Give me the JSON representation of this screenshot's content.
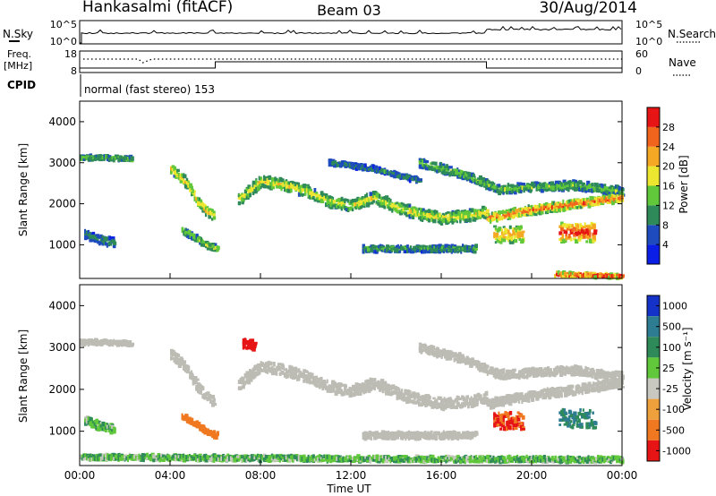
{
  "header": {
    "station": "Hankasalmi (fitACF)",
    "beam": "Beam 03",
    "date": "30/Aug/2014"
  },
  "top_panels": {
    "nsky_label": "N.Sky",
    "nsky_ticks": [
      "10^5",
      "10^0"
    ],
    "nsearch_label": "N.Search",
    "nsearch_ticks": [
      "10^5",
      "10^0"
    ],
    "freq_label_1": "Freq.",
    "freq_label_2": "[MHz]",
    "freq_ticks": [
      "18",
      "8"
    ],
    "nave_label": "Nave",
    "nave_ticks": [
      "60",
      "0"
    ],
    "cpid_label": "CPID",
    "cpid_text": "normal (fast stereo) 153"
  },
  "colors": {
    "power_scale": [
      "#0a1ee6",
      "#1e4bbe",
      "#2e8a58",
      "#60c83a",
      "#ece630",
      "#f5a823",
      "#f0641e",
      "#e61414"
    ],
    "velocity_scale": [
      "#1432c8",
      "#2e7c92",
      "#2e8a58",
      "#60c83a",
      "#c8c8c0",
      "#eea03c",
      "#f07820",
      "#e61414"
    ],
    "ground_scatter": "#bcbcb4"
  },
  "chart_data": [
    {
      "type": "heatmap",
      "name": "power",
      "ylabel": "Slant Range [km]",
      "y_ticks": [
        "1000",
        "2000",
        "3000",
        "4000"
      ],
      "ylim": [
        180,
        4500
      ],
      "xlim_hours": [
        0,
        24
      ],
      "colorbar": {
        "label": "Power [dB]",
        "ticks": [
          "4",
          "8",
          "12",
          "16",
          "20",
          "24",
          "28"
        ],
        "range": [
          0,
          30
        ]
      },
      "echo_bands": [
        {
          "range_km": [
            [
              0,
              3120
            ],
            [
              1,
              3120
            ],
            [
              2,
              3100
            ],
            [
              2.3,
              3080
            ]
          ],
          "width_km": 100,
          "peak_db": 14
        },
        {
          "range_km": [
            [
              0.2,
              1250
            ],
            [
              1,
              1100
            ],
            [
              1.5,
              1050
            ]
          ],
          "width_km": 200,
          "peak_db": 10
        },
        {
          "range_km": [
            [
              4,
              2850
            ],
            [
              4.7,
              2500
            ],
            [
              5.2,
              2050
            ],
            [
              5.6,
              1800
            ],
            [
              5.9,
              1700
            ]
          ],
          "width_km": 220,
          "peak_db": 20
        },
        {
          "range_km": [
            [
              4.5,
              1350
            ],
            [
              5,
              1200
            ],
            [
              5.7,
              950
            ],
            [
              6.1,
              900
            ]
          ],
          "width_km": 140,
          "peak_db": 16
        },
        {
          "range_km": [
            [
              7,
              2100
            ],
            [
              8,
              2550
            ],
            [
              9,
              2450
            ],
            [
              10,
              2300
            ],
            [
              11,
              2050
            ],
            [
              12,
              1950
            ],
            [
              13,
              2150
            ],
            [
              14,
              1900
            ],
            [
              15,
              1750
            ],
            [
              16,
              1650
            ],
            [
              17,
              1700
            ],
            [
              18,
              1800
            ]
          ],
          "width_km": 260,
          "peak_db": 18
        },
        {
          "range_km": [
            [
              11,
              3000
            ],
            [
              13,
              2850
            ],
            [
              14,
              2700
            ],
            [
              15,
              2550
            ]
          ],
          "width_km": 110,
          "peak_db": 10
        },
        {
          "range_km": [
            [
              15,
              3000
            ],
            [
              17,
              2700
            ],
            [
              18.5,
              2350
            ],
            [
              20,
              2400
            ],
            [
              22,
              2450
            ],
            [
              23,
              2350
            ],
            [
              24,
              2300
            ]
          ],
          "width_km": 200,
          "peak_db": 14
        },
        {
          "range_km": [
            [
              18,
              1650
            ],
            [
              20,
              1850
            ],
            [
              22,
              2000
            ],
            [
              24,
              2150
            ]
          ],
          "width_km": 200,
          "peak_db": 26
        },
        {
          "range_km": [
            [
              18.3,
              1250
            ],
            [
              19.6,
              1250
            ]
          ],
          "width_km": 400,
          "peak_db": 22
        },
        {
          "range_km": [
            [
              21.2,
              1300
            ],
            [
              22.8,
              1300
            ]
          ],
          "width_km": 450,
          "peak_db": 29
        },
        {
          "range_km": [
            [
              12.5,
              900
            ],
            [
              15,
              900
            ],
            [
              17.5,
              900
            ]
          ],
          "width_km": 150,
          "peak_db": 12
        },
        {
          "range_km": [
            [
              21,
              280
            ],
            [
              24,
              230
            ]
          ],
          "width_km": 90,
          "peak_db": 29
        }
      ]
    },
    {
      "type": "heatmap",
      "name": "velocity",
      "ylabel": "Slant Range [km]",
      "y_ticks": [
        "1000",
        "2000",
        "3000",
        "4000"
      ],
      "ylim": [
        180,
        4500
      ],
      "xlim_hours": [
        0,
        24
      ],
      "xlabel": "Time UT",
      "x_ticks": [
        "00:00",
        "04:00",
        "08:00",
        "12:00",
        "16:00",
        "20:00",
        "00:00"
      ],
      "colorbar": {
        "label": "Velocity [m s⁻¹]",
        "ticks": [
          "1000",
          "500",
          "100",
          "25",
          "-25",
          "-100",
          "-500",
          "-1000"
        ],
        "range": [
          -1200,
          1200
        ]
      },
      "echo_bands": [
        {
          "range_km": [
            [
              0,
              3120
            ],
            [
              1,
              3120
            ],
            [
              2,
              3100
            ],
            [
              2.3,
              3080
            ]
          ],
          "width_km": 100,
          "velocity": 0,
          "ground_scatter": true
        },
        {
          "range_km": [
            [
              4,
              2850
            ],
            [
              4.7,
              2500
            ],
            [
              5.2,
              2050
            ],
            [
              5.6,
              1800
            ],
            [
              5.9,
              1700
            ]
          ],
          "width_km": 220,
          "velocity": 0,
          "ground_scatter": true
        },
        {
          "range_km": [
            [
              7,
              2100
            ],
            [
              8,
              2550
            ],
            [
              9,
              2450
            ],
            [
              10,
              2300
            ],
            [
              11,
              2050
            ],
            [
              12,
              1950
            ],
            [
              13,
              2150
            ],
            [
              14,
              1900
            ],
            [
              15,
              1750
            ],
            [
              16,
              1650
            ],
            [
              17,
              1700
            ],
            [
              18,
              1800
            ]
          ],
          "width_km": 260,
          "velocity": 0,
          "ground_scatter": true
        },
        {
          "range_km": [
            [
              15,
              3000
            ],
            [
              17,
              2700
            ],
            [
              18.5,
              2350
            ],
            [
              20,
              2400
            ],
            [
              22,
              2450
            ],
            [
              23,
              2350
            ],
            [
              24,
              2300
            ]
          ],
          "width_km": 200,
          "velocity": 0,
          "ground_scatter": true
        },
        {
          "range_km": [
            [
              18,
              1650
            ],
            [
              20,
              1850
            ],
            [
              22,
              2000
            ],
            [
              24,
              2150
            ]
          ],
          "width_km": 200,
          "velocity": 0,
          "ground_scatter": true
        },
        {
          "range_km": [
            [
              12.5,
              900
            ],
            [
              15,
              900
            ],
            [
              17.5,
              900
            ]
          ],
          "width_km": 150,
          "velocity": 0,
          "ground_scatter": true
        },
        {
          "range_km": [
            [
              4.5,
              1350
            ],
            [
              5,
              1200
            ],
            [
              5.7,
              950
            ],
            [
              6.1,
              900
            ]
          ],
          "width_km": 140,
          "velocity": -200
        },
        {
          "range_km": [
            [
              0.2,
              1250
            ],
            [
              1,
              1100
            ],
            [
              1.5,
              1050
            ]
          ],
          "width_km": 200,
          "velocity": 60
        },
        {
          "range_km": [
            [
              18.3,
              1250
            ],
            [
              19.6,
              1250
            ]
          ],
          "width_km": 400,
          "velocity": -500
        },
        {
          "range_km": [
            [
              21.2,
              1300
            ],
            [
              22.8,
              1300
            ]
          ],
          "width_km": 450,
          "velocity": 500
        },
        {
          "range_km": [
            [
              0,
              380
            ],
            [
              6,
              360
            ],
            [
              12,
              340
            ],
            [
              18,
              330
            ],
            [
              24,
              320
            ]
          ],
          "width_km": 120,
          "velocity": 80
        },
        {
          "range_km": [
            [
              7.2,
              3100
            ],
            [
              7.7,
              3050
            ]
          ],
          "width_km": 250,
          "velocity": -800
        }
      ]
    }
  ]
}
